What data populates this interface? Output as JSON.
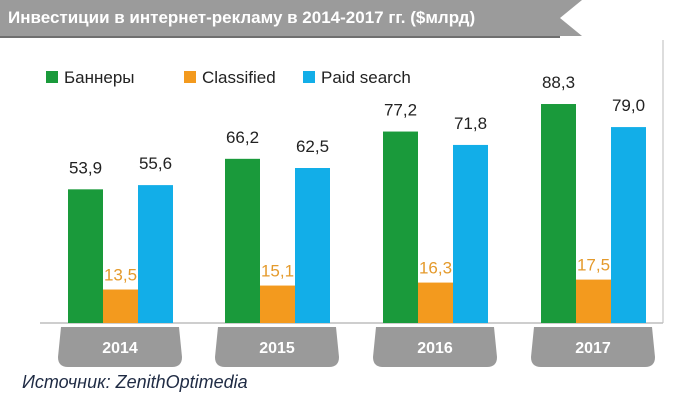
{
  "title": "Инвестиции в интернет-рекламу в 2014-2017 гг. ($млрд)",
  "source": "Источник: ZenithOptimedia",
  "colors": {
    "banners": "#1a9a3b",
    "classified": "#f39a1e",
    "paid_search": "#12aee8",
    "classified_label": "#e49a2c",
    "year_tab": "#9a9a9a",
    "title_bg": "#9b9b9b"
  },
  "chart_data": {
    "type": "bar",
    "categories": [
      "2014",
      "2015",
      "2016",
      "2017"
    ],
    "series": [
      {
        "name": "Баннеры",
        "values": [
          53.9,
          66.2,
          77.2,
          88.3
        ],
        "labels": [
          "53,9",
          "66,2",
          "77,2",
          "88,3"
        ]
      },
      {
        "name": "Classified",
        "values": [
          13.5,
          15.1,
          16.3,
          17.5
        ],
        "labels": [
          "13,5",
          "15,1",
          "16,3",
          "17,5"
        ]
      },
      {
        "name": "Paid search",
        "values": [
          55.6,
          62.5,
          71.8,
          79.0
        ],
        "labels": [
          "55,6",
          "62,5",
          "71,8",
          "79,0"
        ]
      }
    ],
    "ylim": [
      0,
      100
    ],
    "grid": false,
    "legend": "top-left",
    "xlabel": "",
    "ylabel": ""
  }
}
